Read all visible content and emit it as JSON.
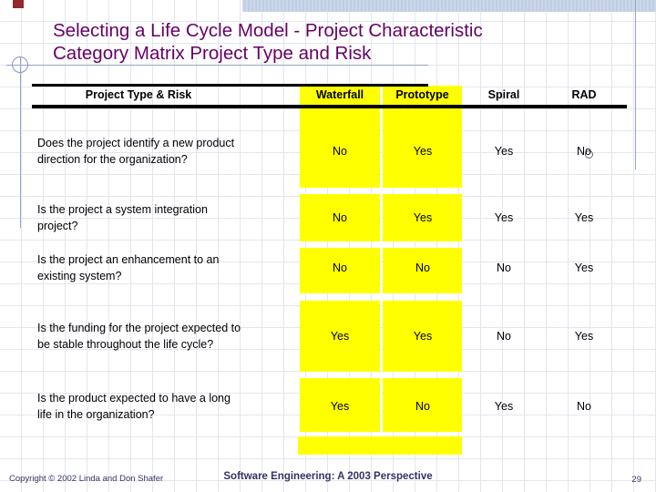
{
  "slide": {
    "title_lines": [
      "Selecting a Life Cycle Model - Project Characteristic",
      "Category Matrix Project Type and Risk"
    ]
  },
  "table": {
    "header": [
      "Project Type & Risk",
      "Waterfall",
      "Prototype",
      "Spiral",
      "RAD"
    ],
    "highlighted_columns": [
      "Waterfall",
      "Prototype"
    ],
    "rows": [
      {
        "question": [
          "Does the project identify a new product",
          "direction for the organization?"
        ],
        "answers": [
          "No",
          "Yes",
          "Yes",
          "No"
        ]
      },
      {
        "question": [
          "Is the project a system integration",
          "project?"
        ],
        "answers": [
          "No",
          "Yes",
          "Yes",
          "Yes"
        ]
      },
      {
        "question": [
          "Is the project an enhancement to an",
          "existing system?"
        ],
        "answers": [
          "No",
          "No",
          "No",
          "Yes"
        ]
      },
      {
        "question": [
          "Is the funding for the project expected to",
          "be stable throughout the life cycle?"
        ],
        "answers": [
          "Yes",
          "Yes",
          "No",
          "Yes"
        ]
      },
      {
        "question": [
          "Is the product expected to have a long",
          "life in the organization?"
        ],
        "answers": [
          "Yes",
          "No",
          "Yes",
          "No"
        ]
      }
    ]
  },
  "footer": {
    "copyright": "Copyright © 2002 Linda and Don Shafer",
    "center": "Software Engineering: A 2003 Perspective",
    "page": "29"
  },
  "colors": {
    "highlight": "#ffff00",
    "title_text": "#660066",
    "footer_text": "#333366",
    "decor_line": "#96a5c6",
    "table_rule": "#000000"
  }
}
